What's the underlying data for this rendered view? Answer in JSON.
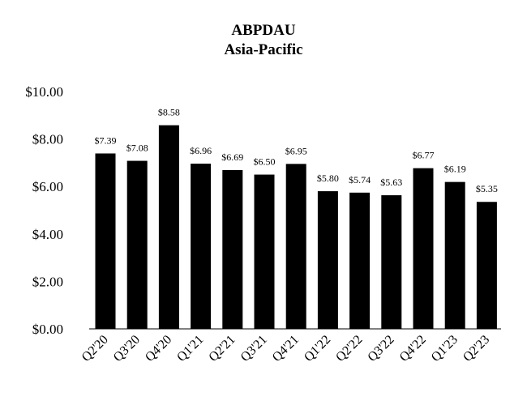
{
  "chart_data": {
    "type": "bar",
    "title": "ABPDAU",
    "subtitle": "Asia-Pacific",
    "categories": [
      "Q2'20",
      "Q3'20",
      "Q4'20",
      "Q1'21",
      "Q2'21",
      "Q3'21",
      "Q4'21",
      "Q1'22",
      "Q2'22",
      "Q3'22",
      "Q4'22",
      "Q1'23",
      "Q2'23"
    ],
    "values": [
      7.39,
      7.08,
      8.58,
      6.96,
      6.69,
      6.5,
      6.95,
      5.8,
      5.74,
      5.63,
      6.77,
      6.19,
      5.35
    ],
    "data_labels": [
      "$7.39",
      "$7.08",
      "$8.58",
      "$6.96",
      "$6.69",
      "$6.50",
      "$6.95",
      "$5.80",
      "$5.74",
      "$5.63",
      "$6.77",
      "$6.19",
      "$5.35"
    ],
    "y_ticks": [
      0,
      2,
      4,
      6,
      8,
      10
    ],
    "y_tick_labels": [
      "$0.00",
      "$2.00",
      "$4.00",
      "$6.00",
      "$8.00",
      "$10.00"
    ],
    "ylim": [
      0,
      10
    ],
    "xlabel": "",
    "ylabel": "",
    "grid": false,
    "legend": "none",
    "bar_color": "#000000"
  }
}
